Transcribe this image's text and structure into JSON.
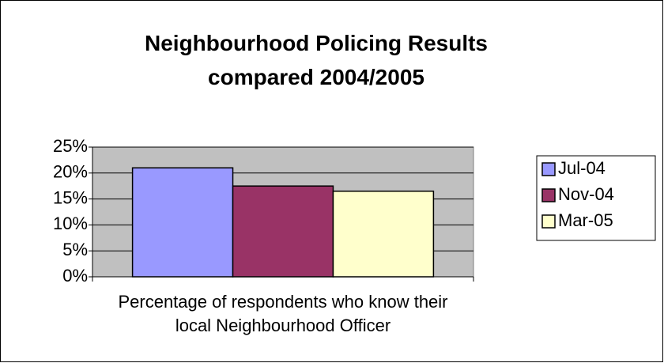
{
  "chart_data": {
    "type": "bar",
    "title": "Neighbourhood Policing Results compared 2004/2005",
    "categories": [
      "Percentage of respondents who know their local Neighbourhood Officer"
    ],
    "series": [
      {
        "name": "Jul-04",
        "color": "#9999ff",
        "values": [
          21
        ]
      },
      {
        "name": "Nov-04",
        "color": "#993366",
        "values": [
          17.5
        ]
      },
      {
        "name": "Mar-05",
        "color": "#ffffcc",
        "values": [
          16.5
        ]
      }
    ],
    "ylim": [
      0,
      25
    ],
    "yticks": [
      {
        "value": 0,
        "label": "0%"
      },
      {
        "value": 5,
        "label": "5%"
      },
      {
        "value": 10,
        "label": "10%"
      },
      {
        "value": 15,
        "label": "15%"
      },
      {
        "value": 20,
        "label": "20%"
      },
      {
        "value": 25,
        "label": "25%"
      }
    ],
    "grid": true,
    "legend": "right"
  }
}
